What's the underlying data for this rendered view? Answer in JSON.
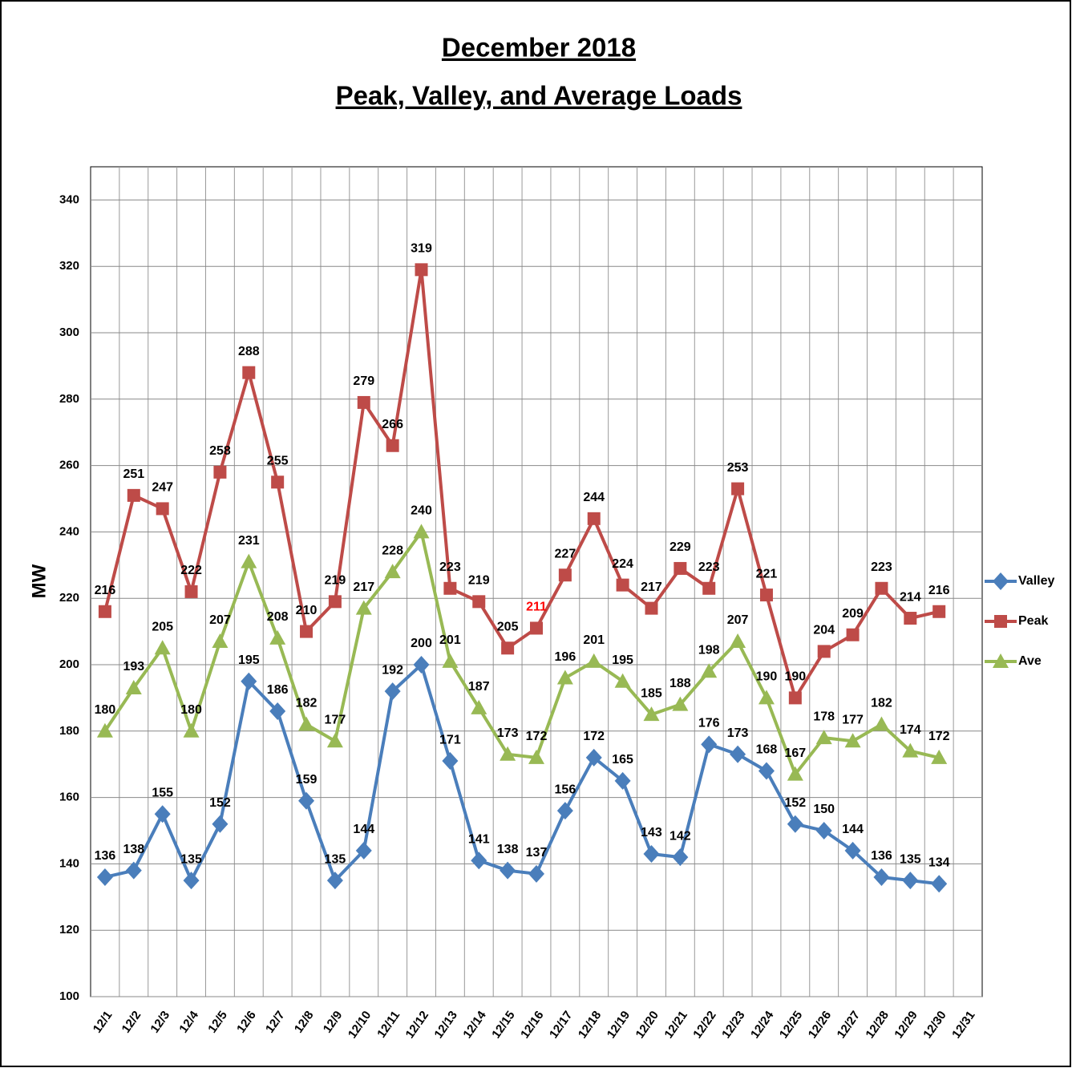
{
  "chart_data": {
    "type": "line",
    "title": "December 2018",
    "subtitle": "Peak, Valley, and Average Loads",
    "y_label": "MW",
    "categories": [
      "12/1",
      "12/2",
      "12/3",
      "12/4",
      "12/5",
      "12/6",
      "12/7",
      "12/8",
      "12/9",
      "12/10",
      "12/11",
      "12/12",
      "12/13",
      "12/14",
      "12/15",
      "12/16",
      "12/17",
      "12/18",
      "12/19",
      "12/20",
      "12/21",
      "12/22",
      "12/23",
      "12/24",
      "12/25",
      "12/26",
      "12/27",
      "12/28",
      "12/29",
      "12/30",
      "12/31"
    ],
    "series": [
      {
        "name": "Valley",
        "color": "#4a7ebb",
        "marker": "diamond",
        "values": [
          136,
          138,
          155,
          135,
          152,
          195,
          186,
          159,
          135,
          144,
          192,
          200,
          171,
          141,
          138,
          137,
          156,
          172,
          165,
          143,
          142,
          176,
          173,
          168,
          152,
          150,
          144,
          136,
          135,
          134,
          null
        ]
      },
      {
        "name": "Peak",
        "color": "#be4b48",
        "marker": "square",
        "values": [
          216,
          251,
          247,
          222,
          258,
          288,
          255,
          210,
          219,
          279,
          266,
          319,
          223,
          219,
          205,
          211,
          227,
          244,
          224,
          217,
          229,
          223,
          253,
          221,
          190,
          204,
          209,
          223,
          214,
          216,
          null
        ]
      },
      {
        "name": "Ave",
        "color": "#98b954",
        "marker": "triangle",
        "values": [
          180,
          193,
          205,
          180,
          207,
          231,
          208,
          182,
          177,
          217,
          228,
          240,
          201,
          187,
          173,
          172,
          196,
          201,
          195,
          185,
          188,
          198,
          207,
          190,
          167,
          178,
          177,
          182,
          174,
          172,
          null
        ]
      }
    ],
    "highlight_label": {
      "series": 1,
      "index": 15,
      "color": "#ff0000"
    },
    "ylim": [
      100,
      350
    ],
    "yticks": [
      100,
      120,
      140,
      160,
      180,
      200,
      220,
      240,
      260,
      280,
      300,
      320,
      340
    ],
    "grid": true,
    "legend": "right"
  }
}
